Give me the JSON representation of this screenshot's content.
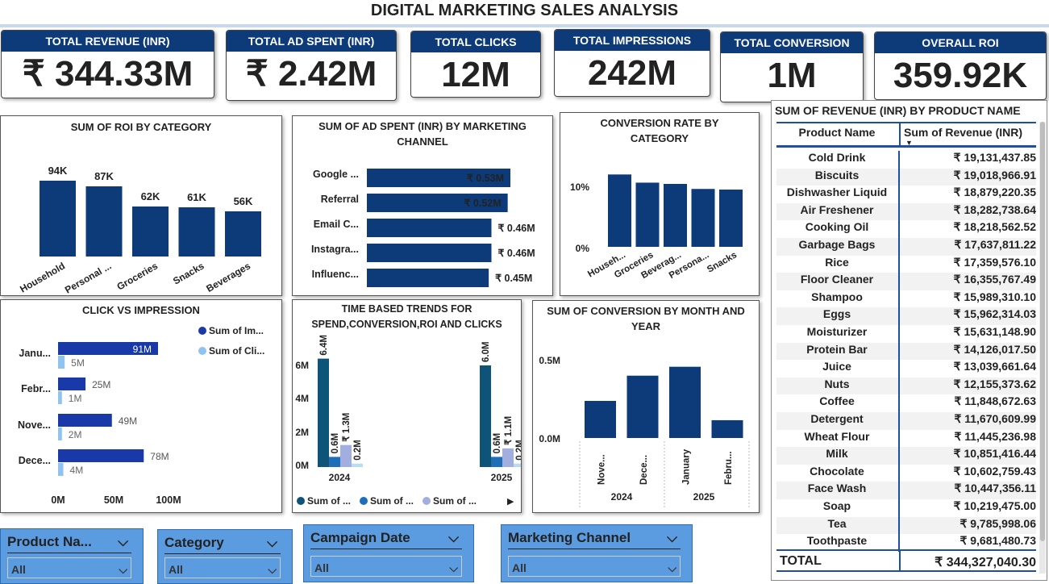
{
  "title": "DIGITAL MARKETING SALES ANALYSIS",
  "kpis": [
    {
      "label": "TOTAL REVENUE (INR)",
      "value": "₹ 344.33M"
    },
    {
      "label": "TOTAL AD SPENT (INR)",
      "value": "₹ 2.42M"
    },
    {
      "label": "TOTAL CLICKS",
      "value": "12M"
    },
    {
      "label": "TOTAL IMPRESSIONS",
      "value": "242M"
    },
    {
      "label": "TOTAL CONVERSION",
      "value": "1M"
    },
    {
      "label": "OVERALL ROI",
      "value": "359.92K"
    }
  ],
  "chart_data": [
    {
      "id": "roi_by_category",
      "type": "bar",
      "title": "SUM OF ROI BY CATEGORY",
      "categories": [
        "Household",
        "Personal ...",
        "Groceries",
        "Snacks",
        "Beverages"
      ],
      "values": [
        94,
        87,
        62,
        61,
        56
      ],
      "data_labels": [
        "94K",
        "87K",
        "62K",
        "61K",
        "56K"
      ],
      "color": "#0d3b7a"
    },
    {
      "id": "ad_spent_by_channel",
      "type": "bar",
      "orientation": "horizontal",
      "title": "SUM OF AD SPENT (INR) BY MARKETING CHANNEL",
      "categories": [
        "Google ...",
        "Referral",
        "Email C...",
        "Instagra...",
        "Influenc..."
      ],
      "values": [
        0.53,
        0.52,
        0.46,
        0.46,
        0.45
      ],
      "data_labels": [
        "₹ 0.53M",
        "₹ 0.52M",
        "₹ 0.46M",
        "₹ 0.46M",
        "₹ 0.45M"
      ],
      "color": "#0d3b7a"
    },
    {
      "id": "conversion_rate_by_category",
      "type": "bar",
      "title": "CONVERSION RATE BY CATEGORY",
      "categories": [
        "Househ...",
        "Groceries",
        "Beverag...",
        "Persona...",
        "Snacks"
      ],
      "values": [
        11.5,
        10.2,
        10.0,
        9.2,
        9.1
      ],
      "yticks": [
        "10%",
        "0%"
      ],
      "color": "#0d3b7a"
    },
    {
      "id": "click_vs_impression",
      "type": "bar",
      "orientation": "horizontal",
      "title": "CLICK VS IMPRESSION",
      "categories": [
        "Janu...",
        "Febr...",
        "Nove...",
        "Dece..."
      ],
      "series": [
        {
          "name": "Sum of Im...",
          "values": [
            91,
            25,
            49,
            78
          ],
          "labels": [
            "91M",
            "25M",
            "49M",
            "78M"
          ],
          "color": "#1a39a8"
        },
        {
          "name": "Sum of Cli...",
          "values": [
            5,
            1,
            2,
            4
          ],
          "labels": [
            "5M",
            "1M",
            "2M",
            "4M"
          ],
          "color": "#8ec4ef"
        }
      ],
      "xticks": [
        "0M",
        "50M",
        "100M"
      ],
      "xlim": [
        0,
        100
      ]
    },
    {
      "id": "time_trends",
      "type": "bar",
      "title": "TIME BASED TRENDS FOR SPEND,CONVERSION,ROI AND CLICKS",
      "categories": [
        "2024",
        "2025"
      ],
      "series": [
        {
          "name": "Sum of ...",
          "values": [
            6.4,
            6.0
          ],
          "labels": [
            "6.4M",
            "6.0M"
          ],
          "color": "#0e5478"
        },
        {
          "name": "Sum of ...",
          "values": [
            0.6,
            0.6
          ],
          "labels": [
            "0.6M",
            "0.6M"
          ],
          "color": "#1f6fb8"
        },
        {
          "name": "Sum of ...",
          "values": [
            1.3,
            1.1
          ],
          "labels": [
            "₹ 1.3M",
            "₹ 1.1M"
          ],
          "color": "#a3aee0"
        },
        {
          "name": "",
          "values": [
            0.2,
            0.2
          ],
          "labels": [
            "0.2M",
            "0.2M"
          ],
          "color": "#b9dcf5"
        }
      ],
      "yticks": [
        "6M",
        "4M",
        "2M",
        "0M"
      ],
      "ylim": [
        0,
        7
      ]
    },
    {
      "id": "conversion_by_month",
      "type": "bar",
      "title": "SUM OF CONVERSION BY MONTH AND YEAR",
      "categories": [
        "Nove...",
        "Dece...",
        "January",
        "Febru..."
      ],
      "years": [
        "2024",
        "2025"
      ],
      "values": [
        0.25,
        0.42,
        0.48,
        0.12
      ],
      "yticks": [
        "0.5M",
        "0.0M"
      ],
      "color": "#0d3b7a"
    }
  ],
  "table": {
    "title": "SUM OF REVENUE (INR) BY PRODUCT NAME",
    "col1": "Product Name",
    "col2": "Sum of Revenue (INR)",
    "rows": [
      [
        "Cold Drink",
        "₹ 19,131,437.85"
      ],
      [
        "Biscuits",
        "₹ 19,018,966.91"
      ],
      [
        "Dishwasher Liquid",
        "₹ 18,879,220.35"
      ],
      [
        "Air Freshener",
        "₹ 18,282,738.64"
      ],
      [
        "Cooking Oil",
        "₹ 18,218,562.52"
      ],
      [
        "Garbage Bags",
        "₹ 17,637,811.22"
      ],
      [
        "Rice",
        "₹ 17,359,576.10"
      ],
      [
        "Floor Cleaner",
        "₹ 16,355,767.49"
      ],
      [
        "Shampoo",
        "₹ 15,989,310.10"
      ],
      [
        "Eggs",
        "₹ 15,962,314.03"
      ],
      [
        "Moisturizer",
        "₹ 15,631,148.90"
      ],
      [
        "Protein Bar",
        "₹ 14,126,017.50"
      ],
      [
        "Juice",
        "₹ 13,039,661.64"
      ],
      [
        "Nuts",
        "₹ 12,155,373.62"
      ],
      [
        "Coffee",
        "₹ 11,848,672.63"
      ],
      [
        "Detergent",
        "₹ 11,670,609.99"
      ],
      [
        "Wheat Flour",
        "₹ 11,445,236.98"
      ],
      [
        "Milk",
        "₹ 10,851,416.44"
      ],
      [
        "Chocolate",
        "₹ 10,602,759.43"
      ],
      [
        "Face Wash",
        "₹ 10,447,356.11"
      ],
      [
        "Soap",
        "₹ 10,219,475.00"
      ],
      [
        "Tea",
        "₹ 9,785,998.06"
      ],
      [
        "Toothpaste",
        "₹ 9,681,480.73"
      ]
    ],
    "total_label": "TOTAL",
    "total_value": "₹ 344,327,040.30"
  },
  "slicers": [
    {
      "label": "Product Na...",
      "value": "All"
    },
    {
      "label": "Category",
      "value": "All"
    },
    {
      "label": "Campaign Date",
      "value": "All"
    },
    {
      "label": "Marketing Channel",
      "value": "All"
    }
  ]
}
